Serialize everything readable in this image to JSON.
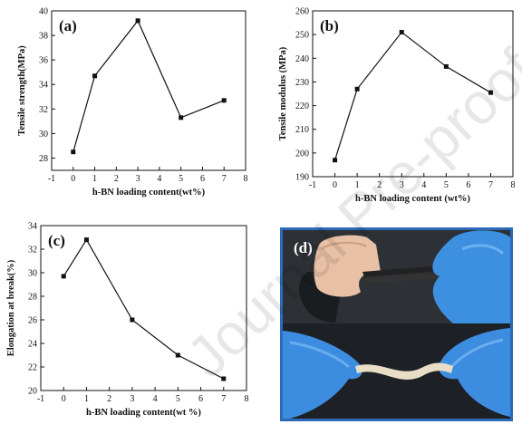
{
  "watermark": "Journal Pre-proof",
  "colors": {
    "line": "#111111",
    "photo_border": "#2a6ab8"
  },
  "chart_data": [
    {
      "type": "line",
      "panel_label": "(a)",
      "xlabel": "h-BN loading content(wt%)",
      "ylabel": "Tensile strength(MPa)",
      "xlim": [
        -1,
        8
      ],
      "ylim": [
        27,
        40
      ],
      "xticks": [
        -1,
        0,
        1,
        2,
        3,
        4,
        5,
        6,
        7,
        8
      ],
      "yticks": [
        28,
        30,
        32,
        34,
        36,
        38,
        40
      ],
      "x": [
        0,
        1,
        3,
        5,
        7
      ],
      "y": [
        28.5,
        34.7,
        39.2,
        31.3,
        32.7
      ],
      "grid": false
    },
    {
      "type": "line",
      "panel_label": "(b)",
      "xlabel": "h-BN loading content (wt%)",
      "ylabel": "Tensile modulus (MPa)",
      "xlim": [
        -1,
        8
      ],
      "ylim": [
        190,
        260
      ],
      "xticks": [
        -1,
        0,
        1,
        2,
        3,
        4,
        5,
        6,
        7,
        8
      ],
      "yticks": [
        190,
        200,
        210,
        220,
        230,
        240,
        250,
        260
      ],
      "x": [
        0,
        1,
        3,
        5,
        7
      ],
      "y": [
        197,
        227,
        251,
        236.5,
        225.5
      ],
      "grid": false
    },
    {
      "type": "line",
      "panel_label": "(c)",
      "xlabel": "h-BN loading content(wt %)",
      "ylabel": "Elongation at break(%)",
      "xlim": [
        -1,
        8
      ],
      "ylim": [
        20,
        34
      ],
      "xticks": [
        -1,
        0,
        1,
        2,
        3,
        4,
        5,
        6,
        7,
        8
      ],
      "yticks": [
        20,
        22,
        24,
        26,
        28,
        30,
        32,
        34
      ],
      "x": [
        0,
        1,
        3,
        5,
        7
      ],
      "y": [
        29.7,
        32.8,
        26.0,
        23.0,
        21.0
      ],
      "grid": false
    }
  ],
  "photo": {
    "panel_label": "(d)"
  }
}
